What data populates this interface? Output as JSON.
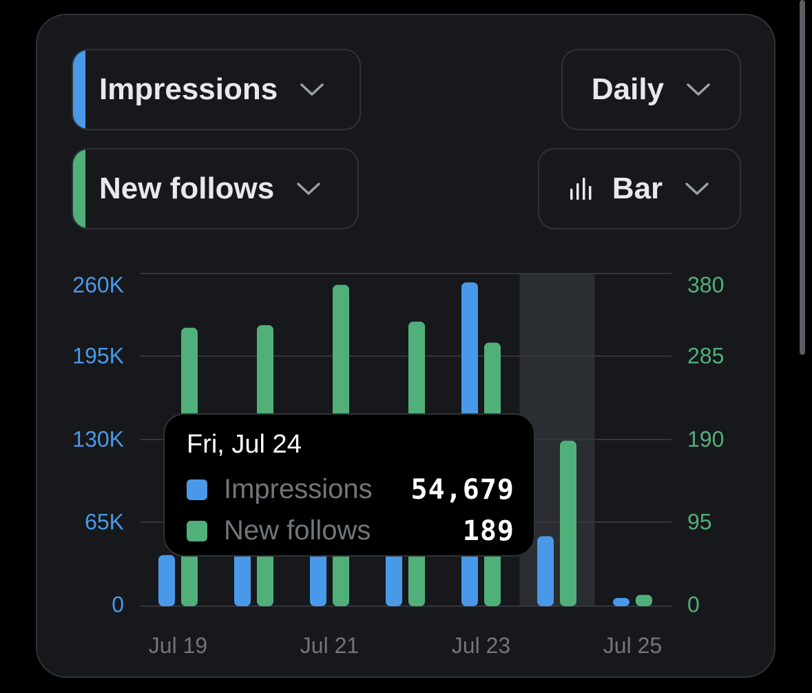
{
  "controls": {
    "metric1": {
      "label": "Impressions",
      "color": "#4a99e9",
      "icon": "chevron-down-icon"
    },
    "metric2": {
      "label": "New follows",
      "color": "#51b07a",
      "icon": "chevron-down-icon"
    },
    "interval": {
      "label": "Daily",
      "icon": "chevron-down-icon"
    },
    "chart_type": {
      "label": "Bar",
      "icon": "bar-chart-icon"
    }
  },
  "tooltip": {
    "date": "Fri, Jul 24",
    "rows": [
      {
        "name": "Impressions",
        "value": "54,679",
        "color": "#4a99e9"
      },
      {
        "name": "New follows",
        "value": "189",
        "color": "#51b07a"
      }
    ]
  },
  "chart_data": {
    "type": "bar",
    "categories": [
      "Jul 19",
      "Jul 20",
      "Jul 21",
      "Jul 22",
      "Jul 23",
      "Jul 24",
      "Jul 25"
    ],
    "x_tick_labels": [
      "Jul 19",
      "Jul 21",
      "Jul 23",
      "Jul 25"
    ],
    "highlighted_category": "Jul 24",
    "series": [
      {
        "name": "Impressions",
        "axis": "left",
        "color": "#4a99e9",
        "values": [
          40000,
          42000,
          55000,
          58000,
          253000,
          54679,
          4000
        ]
      },
      {
        "name": "New follows",
        "axis": "right",
        "color": "#51b07a",
        "values": [
          318,
          321,
          367,
          325,
          301,
          189,
          13
        ]
      }
    ],
    "y_left": {
      "ticks": [
        "0",
        "65K",
        "130K",
        "195K",
        "260K"
      ],
      "ylim": [
        0,
        260000
      ],
      "color": "#4a99e9"
    },
    "y_right": {
      "ticks": [
        "0",
        "95",
        "190",
        "285",
        "380"
      ],
      "ylim": [
        0,
        380
      ],
      "color": "#51b07a"
    },
    "grid": true
  }
}
